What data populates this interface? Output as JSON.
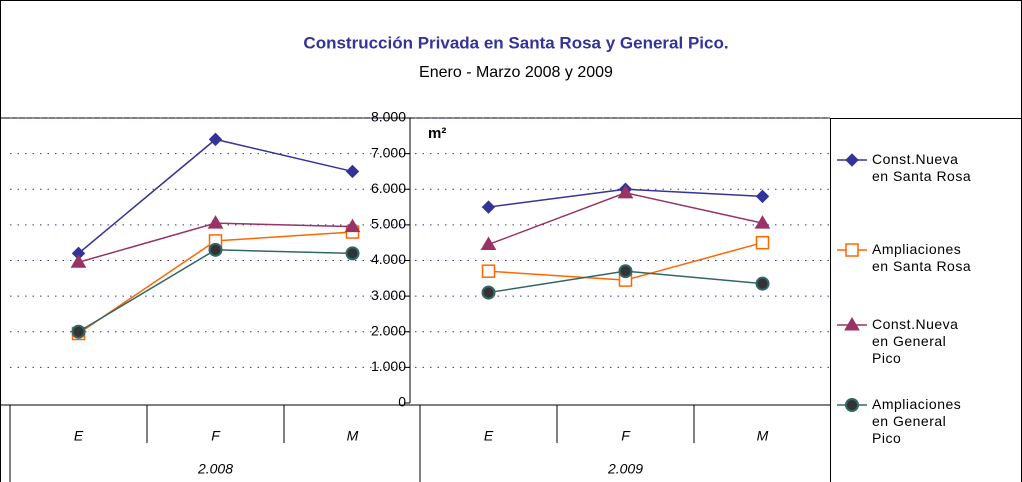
{
  "chart_data": {
    "type": "line",
    "title": "Construcción Privada en Santa Rosa y General Pico.",
    "subtitle": "Enero - Marzo 2008 y 2009",
    "y_label": "m²",
    "categories": [
      "E",
      "F",
      "M",
      "E",
      "F",
      "M"
    ],
    "groups": [
      "2.008",
      "2.009"
    ],
    "ylim": [
      0,
      8000
    ],
    "yticks": [
      0,
      {
        "value": 1000,
        "label": "1.000"
      },
      {
        "value": 2000,
        "label": "2.000"
      },
      {
        "value": 3000,
        "label": "3.000"
      },
      {
        "value": 4000,
        "label": "4.000"
      },
      {
        "value": 5000,
        "label": "5.000"
      },
      {
        "value": 6000,
        "label": "6.000"
      },
      {
        "value": 7000,
        "label": "7.000"
      },
      {
        "value": 8000,
        "label": "8.000"
      }
    ],
    "grid": true,
    "legend": "right",
    "series": [
      {
        "name": "Const.Nueva en Santa Rosa",
        "color": "#333399",
        "marker": "diamond",
        "values": [
          4200,
          7400,
          6500,
          5500,
          6000,
          5800
        ]
      },
      {
        "name": "Ampliaciones en Santa Rosa",
        "color": "#ff6600",
        "marker": "square",
        "values": [
          1950,
          4550,
          4800,
          3700,
          3450,
          4500
        ]
      },
      {
        "name": "Const.Nueva en General Pico",
        "color": "#993366",
        "marker": "triangle",
        "values": [
          3950,
          5050,
          4950,
          4450,
          5900,
          5050
        ]
      },
      {
        "name": "Ampliaciones en General Pico",
        "color": "#336666",
        "marker": "circle",
        "values": [
          2000,
          4300,
          4200,
          3100,
          3700,
          3350
        ]
      }
    ]
  }
}
